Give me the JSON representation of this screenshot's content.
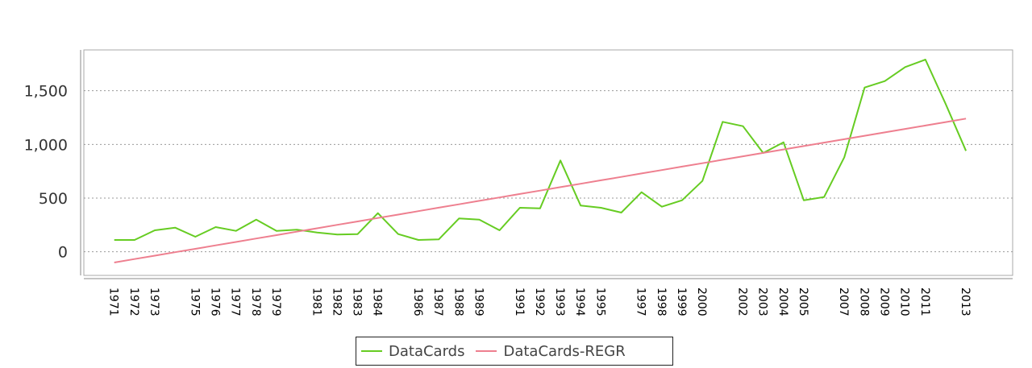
{
  "chart_data": {
    "type": "line",
    "x": [
      1971,
      1972,
      1973,
      1974,
      1975,
      1976,
      1977,
      1978,
      1979,
      1980,
      1981,
      1982,
      1983,
      1984,
      1985,
      1986,
      1987,
      1988,
      1989,
      1990,
      1991,
      1992,
      1993,
      1994,
      1995,
      1996,
      1997,
      1998,
      1999,
      2000,
      2001,
      2002,
      2003,
      2004,
      2005,
      2006,
      2007,
      2008,
      2009,
      2010,
      2011,
      2012,
      2013
    ],
    "x_tick_labels": [
      "1971",
      "1972",
      "1973",
      "1975",
      "1976",
      "1977",
      "1978",
      "1979",
      "1981",
      "1982",
      "1983",
      "1984",
      "1986",
      "1987",
      "1988",
      "1989",
      "1991",
      "1992",
      "1993",
      "1994",
      "1995",
      "1997",
      "1998",
      "1999",
      "2000",
      "2002",
      "2003",
      "2004",
      "2005",
      "2007",
      "2008",
      "2009",
      "2010",
      "2011",
      "2013"
    ],
    "y_ticks": [
      0,
      500,
      1000,
      1500
    ],
    "y_tick_labels": [
      "0",
      "500",
      "1,000",
      "1,500"
    ],
    "ylim": [
      -220,
      1880
    ],
    "grid": "horizontal dotted",
    "legend_placement": "bottom-center",
    "series": [
      {
        "name": "DataCards",
        "color": "#66cc22",
        "values": [
          110,
          110,
          200,
          225,
          140,
          230,
          195,
          300,
          195,
          205,
          180,
          160,
          165,
          360,
          165,
          110,
          115,
          310,
          300,
          200,
          410,
          405,
          850,
          430,
          410,
          365,
          555,
          420,
          480,
          660,
          1210,
          1170,
          920,
          1020,
          480,
          510,
          880,
          1530,
          1590,
          1720,
          1790,
          1375,
          940
        ]
      },
      {
        "name": "DataCards-REGR",
        "color": "#ee7f8f",
        "values": [
          -100,
          -68.1,
          -36.2,
          -4.3,
          27.6,
          59.5,
          91.4,
          123.3,
          155.2,
          187.1,
          219,
          250.9,
          282.8,
          314.7,
          346.6,
          378.5,
          410.4,
          442.3,
          474.2,
          506.1,
          538,
          569.9,
          601.8,
          633.7,
          665.6,
          697.5,
          729.4,
          761.3,
          793.2,
          825.1,
          857,
          888.9,
          920.8,
          952.7,
          984.6,
          1016.5,
          1048.4,
          1080.3,
          1112.2,
          1144.1,
          1176,
          1207.9,
          1240
        ]
      }
    ]
  }
}
